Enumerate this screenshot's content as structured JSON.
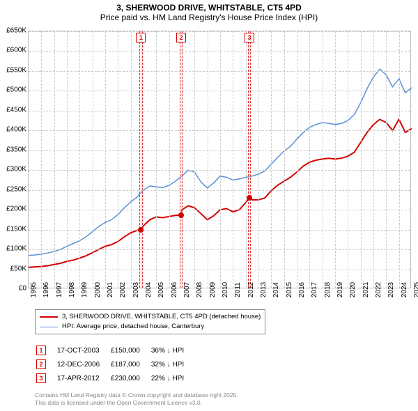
{
  "title": "3, SHERWOOD DRIVE, WHITSTABLE, CT5 4PD",
  "subtitle": "Price paid vs. HM Land Registry's House Price Index (HPI)",
  "chart": {
    "type": "line",
    "background_color": "#ffffff",
    "grid_color": "#cccccc",
    "ylim": [
      0,
      650000
    ],
    "xlim": [
      1995,
      2025
    ],
    "yticks": [
      0,
      50000,
      100000,
      150000,
      200000,
      250000,
      300000,
      350000,
      400000,
      450000,
      500000,
      550000,
      600000,
      650000
    ],
    "ytick_labels": [
      "£0",
      "£50K",
      "£100K",
      "£150K",
      "£200K",
      "£250K",
      "£300K",
      "£350K",
      "£400K",
      "£450K",
      "£500K",
      "£550K",
      "£600K",
      "£650K"
    ],
    "xticks": [
      1995,
      1996,
      1997,
      1998,
      1999,
      2000,
      2001,
      2002,
      2003,
      2004,
      2005,
      2006,
      2007,
      2008,
      2009,
      2010,
      2011,
      2012,
      2013,
      2014,
      2015,
      2016,
      2017,
      2018,
      2019,
      2020,
      2021,
      2022,
      2023,
      2024,
      2025
    ],
    "series": {
      "property": {
        "label": "3, SHERWOOD DRIVE, WHITSTABLE, CT5 4PD (detached house)",
        "color": "#d40000",
        "line_width": 2,
        "values": [
          [
            1995.0,
            55000
          ],
          [
            1995.5,
            56000
          ],
          [
            1996.0,
            57000
          ],
          [
            1996.5,
            59000
          ],
          [
            1997.0,
            62000
          ],
          [
            1997.5,
            65000
          ],
          [
            1998.0,
            70000
          ],
          [
            1998.5,
            73000
          ],
          [
            1999.0,
            78000
          ],
          [
            1999.5,
            84000
          ],
          [
            2000.0,
            92000
          ],
          [
            2000.5,
            100000
          ],
          [
            2001.0,
            108000
          ],
          [
            2001.5,
            112000
          ],
          [
            2002.0,
            120000
          ],
          [
            2002.5,
            132000
          ],
          [
            2003.0,
            142000
          ],
          [
            2003.5,
            148000
          ],
          [
            2003.8,
            150000
          ],
          [
            2004.0,
            160000
          ],
          [
            2004.5,
            175000
          ],
          [
            2005.0,
            182000
          ],
          [
            2005.5,
            180000
          ],
          [
            2006.0,
            183000
          ],
          [
            2006.5,
            186000
          ],
          [
            2006.95,
            187000
          ],
          [
            2007.0,
            200000
          ],
          [
            2007.5,
            210000
          ],
          [
            2008.0,
            205000
          ],
          [
            2008.5,
            190000
          ],
          [
            2009.0,
            175000
          ],
          [
            2009.5,
            185000
          ],
          [
            2010.0,
            200000
          ],
          [
            2010.5,
            203000
          ],
          [
            2011.0,
            195000
          ],
          [
            2011.5,
            200000
          ],
          [
            2012.0,
            218000
          ],
          [
            2012.3,
            230000
          ],
          [
            2012.5,
            225000
          ],
          [
            2013.0,
            225000
          ],
          [
            2013.5,
            230000
          ],
          [
            2014.0,
            248000
          ],
          [
            2014.5,
            262000
          ],
          [
            2015.0,
            272000
          ],
          [
            2015.5,
            282000
          ],
          [
            2016.0,
            295000
          ],
          [
            2016.5,
            310000
          ],
          [
            2017.0,
            320000
          ],
          [
            2017.5,
            325000
          ],
          [
            2018.0,
            328000
          ],
          [
            2018.5,
            330000
          ],
          [
            2019.0,
            328000
          ],
          [
            2019.5,
            330000
          ],
          [
            2020.0,
            335000
          ],
          [
            2020.5,
            345000
          ],
          [
            2021.0,
            370000
          ],
          [
            2021.5,
            395000
          ],
          [
            2022.0,
            415000
          ],
          [
            2022.5,
            428000
          ],
          [
            2023.0,
            420000
          ],
          [
            2023.5,
            400000
          ],
          [
            2024.0,
            428000
          ],
          [
            2024.5,
            395000
          ],
          [
            2025.0,
            405000
          ]
        ]
      },
      "hpi": {
        "label": "HPI: Average price, detached house, Canterbury",
        "color": "#5b8fd6",
        "line_width": 1.5,
        "values": [
          [
            1995.0,
            85000
          ],
          [
            1995.5,
            86000
          ],
          [
            1996.0,
            88000
          ],
          [
            1996.5,
            91000
          ],
          [
            1997.0,
            95000
          ],
          [
            1997.5,
            100000
          ],
          [
            1998.0,
            108000
          ],
          [
            1998.5,
            115000
          ],
          [
            1999.0,
            122000
          ],
          [
            1999.5,
            132000
          ],
          [
            2000.0,
            145000
          ],
          [
            2000.5,
            158000
          ],
          [
            2001.0,
            168000
          ],
          [
            2001.5,
            175000
          ],
          [
            2002.0,
            188000
          ],
          [
            2002.5,
            205000
          ],
          [
            2003.0,
            220000
          ],
          [
            2003.5,
            232000
          ],
          [
            2004.0,
            250000
          ],
          [
            2004.5,
            260000
          ],
          [
            2005.0,
            258000
          ],
          [
            2005.5,
            256000
          ],
          [
            2006.0,
            262000
          ],
          [
            2006.5,
            272000
          ],
          [
            2007.0,
            285000
          ],
          [
            2007.5,
            300000
          ],
          [
            2008.0,
            295000
          ],
          [
            2008.5,
            270000
          ],
          [
            2009.0,
            255000
          ],
          [
            2009.5,
            268000
          ],
          [
            2010.0,
            285000
          ],
          [
            2010.5,
            282000
          ],
          [
            2011.0,
            275000
          ],
          [
            2011.5,
            278000
          ],
          [
            2012.0,
            282000
          ],
          [
            2012.5,
            285000
          ],
          [
            2013.0,
            290000
          ],
          [
            2013.5,
            298000
          ],
          [
            2014.0,
            315000
          ],
          [
            2014.5,
            332000
          ],
          [
            2015.0,
            348000
          ],
          [
            2015.5,
            360000
          ],
          [
            2016.0,
            378000
          ],
          [
            2016.5,
            395000
          ],
          [
            2017.0,
            408000
          ],
          [
            2017.5,
            415000
          ],
          [
            2018.0,
            420000
          ],
          [
            2018.5,
            418000
          ],
          [
            2019.0,
            415000
          ],
          [
            2019.5,
            418000
          ],
          [
            2020.0,
            425000
          ],
          [
            2020.5,
            440000
          ],
          [
            2021.0,
            470000
          ],
          [
            2021.5,
            505000
          ],
          [
            2022.0,
            535000
          ],
          [
            2022.5,
            555000
          ],
          [
            2023.0,
            540000
          ],
          [
            2023.5,
            510000
          ],
          [
            2024.0,
            530000
          ],
          [
            2024.5,
            495000
          ],
          [
            2025.0,
            508000
          ]
        ]
      }
    },
    "events": [
      {
        "n": "1",
        "x": 2003.8,
        "date": "17-OCT-2003",
        "price": "£150,000",
        "diff": "36% ↓ HPI",
        "py": 150000
      },
      {
        "n": "2",
        "x": 2006.95,
        "date": "12-DEC-2006",
        "price": "£187,000",
        "diff": "32% ↓ HPI",
        "py": 187000
      },
      {
        "n": "3",
        "x": 2012.3,
        "date": "17-APR-2012",
        "price": "£230,000",
        "diff": "22% ↓ HPI",
        "py": 230000
      }
    ],
    "event_band_width_years": 0.25,
    "event_band_color": "rgba(252,190,190,0.28)",
    "event_border_color": "#d33"
  },
  "legend": {
    "border_color": "#888"
  },
  "attribution": {
    "line1": "Contains HM Land Registry data © Crown copyright and database right 2025.",
    "line2": "This data is licensed under the Open Government Licence v3.0."
  }
}
